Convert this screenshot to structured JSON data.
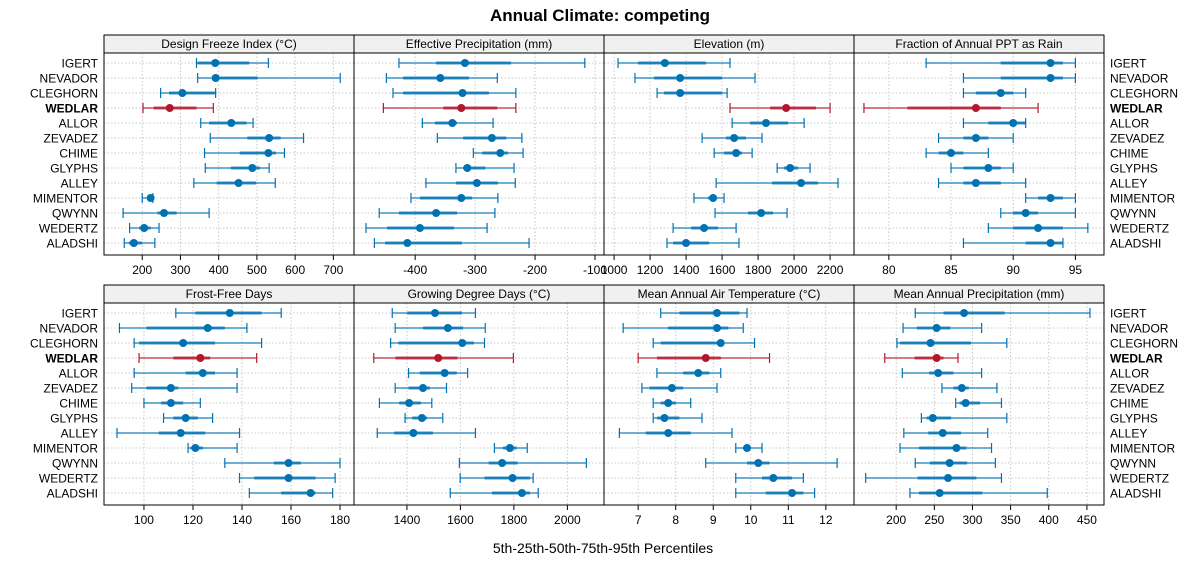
{
  "chart_data": {
    "type": "dotplot-percentile",
    "title": "Annual Climate: competing",
    "xlabel": "5th-25th-50th-75th-95th Percentiles",
    "ylabel": "",
    "highlight": "WEDLAR",
    "colors": {
      "normal": "#0072B2",
      "highlight": "#B2182B"
    },
    "rows": [
      "IGERT",
      "NEVADOR",
      "CLEGHORN",
      "WEDLAR",
      "ALLOR",
      "ZEVADEZ",
      "CHIME",
      "GLYPHS",
      "ALLEY",
      "MIMENTOR",
      "QWYNN",
      "WEDERTZ",
      "ALADSHI"
    ],
    "grid": true,
    "panels": [
      {
        "title": "Design Freeze Index (°C)",
        "xlim": [
          100,
          754
        ],
        "ticks": [
          200,
          300,
          400,
          500,
          600,
          700
        ],
        "values": [
          [
            342,
            345,
            391,
            480,
            530
          ],
          [
            345,
            390,
            392,
            502,
            718
          ],
          [
            248,
            270,
            305,
            392,
            392
          ],
          [
            202,
            230,
            272,
            342,
            386
          ],
          [
            353,
            375,
            433,
            473,
            490
          ],
          [
            378,
            475,
            532,
            562,
            622
          ],
          [
            363,
            455,
            530,
            550,
            572
          ],
          [
            365,
            432,
            488,
            508,
            532
          ],
          [
            335,
            395,
            452,
            498,
            548
          ],
          [
            200,
            215,
            222,
            225,
            228
          ],
          [
            150,
            240,
            257,
            290,
            375
          ],
          [
            167,
            192,
            205,
            222,
            244
          ],
          [
            153,
            165,
            178,
            200,
            233
          ]
        ]
      },
      {
        "title": "Effective Precipitation (mm)",
        "xlim": [
          -502,
          -85
        ],
        "ticks": [
          -400,
          -300,
          -200,
          -100
        ],
        "values": [
          [
            -427,
            -365,
            -317,
            -240,
            -117
          ],
          [
            -448,
            -420,
            -358,
            -310,
            -263
          ],
          [
            -437,
            -420,
            -321,
            -277,
            -232
          ],
          [
            -453,
            -353,
            -323,
            -263,
            -232
          ],
          [
            -388,
            -367,
            -338,
            -330,
            -270
          ],
          [
            -363,
            -320,
            -272,
            -248,
            -222
          ],
          [
            -303,
            -288,
            -258,
            -245,
            -220
          ],
          [
            -332,
            -320,
            -313,
            -283,
            -235
          ],
          [
            -382,
            -332,
            -297,
            -262,
            -233
          ],
          [
            -407,
            -392,
            -323,
            -305,
            -262
          ],
          [
            -460,
            -427,
            -365,
            -330,
            -267
          ],
          [
            -482,
            -447,
            -392,
            -335,
            -280
          ],
          [
            -468,
            -450,
            -413,
            -322,
            -210
          ]
        ]
      },
      {
        "title": "Elevation (m)",
        "xlim": [
          944,
          2333
        ],
        "ticks": [
          1000,
          1200,
          1400,
          1600,
          1800,
          2000,
          2200
        ],
        "values": [
          [
            1022,
            1133,
            1282,
            1511,
            1644
          ],
          [
            1116,
            1222,
            1367,
            1600,
            1783
          ],
          [
            1239,
            1278,
            1367,
            1600,
            1628
          ],
          [
            1644,
            1867,
            1956,
            2122,
            2200
          ],
          [
            1656,
            1756,
            1844,
            1967,
            2056
          ],
          [
            1489,
            1622,
            1667,
            1733,
            1822
          ],
          [
            1556,
            1611,
            1678,
            1711,
            1767
          ],
          [
            1906,
            1944,
            1978,
            2022,
            2089
          ],
          [
            1567,
            1878,
            2039,
            2133,
            2244
          ],
          [
            1444,
            1522,
            1550,
            1567,
            1611
          ],
          [
            1561,
            1744,
            1817,
            1883,
            1961
          ],
          [
            1328,
            1428,
            1500,
            1578,
            1678
          ],
          [
            1294,
            1328,
            1400,
            1528,
            1694
          ]
        ]
      },
      {
        "title": "Fraction of Annual PPT as Rain",
        "xlim": [
          77.2,
          97.3
        ],
        "ticks": [
          80,
          85,
          90,
          95
        ],
        "values": [
          [
            83,
            89,
            93,
            94,
            95
          ],
          [
            86,
            89,
            93,
            94,
            95
          ],
          [
            86,
            87,
            89,
            90,
            91
          ],
          [
            78,
            81.5,
            87,
            89,
            92
          ],
          [
            86,
            88,
            90,
            91,
            91
          ],
          [
            84,
            86,
            87,
            88,
            90
          ],
          [
            83,
            84,
            85,
            86,
            88
          ],
          [
            85,
            86,
            88,
            89,
            90
          ],
          [
            84,
            86,
            87,
            89,
            91
          ],
          [
            91,
            92,
            93,
            94,
            95
          ],
          [
            89,
            90,
            91,
            92,
            95
          ],
          [
            88,
            90,
            92,
            94,
            96
          ],
          [
            86,
            91,
            93,
            94,
            94
          ]
        ]
      },
      {
        "title": "Frost-Free Days",
        "xlim": [
          83.7,
          185.7
        ],
        "ticks": [
          100,
          120,
          140,
          160,
          180
        ],
        "values": [
          [
            113,
            121,
            135,
            148,
            156
          ],
          [
            90,
            101,
            126,
            133,
            142
          ],
          [
            96,
            98,
            116,
            129,
            148
          ],
          [
            98,
            112,
            123,
            127,
            146
          ],
          [
            96,
            117,
            124,
            129,
            138
          ],
          [
            95,
            101,
            111,
            114,
            138
          ],
          [
            100,
            107,
            111,
            116,
            123
          ],
          [
            108,
            112,
            117,
            122,
            128
          ],
          [
            89,
            106,
            115,
            125,
            139
          ],
          [
            118,
            119,
            121,
            124,
            138
          ],
          [
            133,
            153,
            159,
            164,
            180
          ],
          [
            139,
            145,
            159,
            170,
            178
          ],
          [
            143,
            156,
            168,
            170,
            177
          ]
        ]
      },
      {
        "title": "Growing Degree Days (°C)",
        "xlim": [
          1202,
          2137
        ],
        "ticks": [
          1400,
          1600,
          1800,
          2000
        ],
        "values": [
          [
            1345,
            1402,
            1505,
            1606,
            1656
          ],
          [
            1356,
            1460,
            1553,
            1610,
            1693
          ],
          [
            1339,
            1368,
            1607,
            1650,
            1690
          ],
          [
            1276,
            1357,
            1517,
            1589,
            1798
          ],
          [
            1406,
            1448,
            1541,
            1586,
            1627
          ],
          [
            1356,
            1406,
            1460,
            1486,
            1548
          ],
          [
            1297,
            1371,
            1408,
            1452,
            1493
          ],
          [
            1393,
            1420,
            1456,
            1475,
            1534
          ],
          [
            1289,
            1352,
            1424,
            1497,
            1656
          ],
          [
            1727,
            1759,
            1785,
            1810,
            1850
          ],
          [
            1596,
            1706,
            1756,
            1814,
            2071
          ],
          [
            1599,
            1690,
            1795,
            1860,
            1872
          ],
          [
            1562,
            1718,
            1830,
            1860,
            1891
          ]
        ]
      },
      {
        "title": "Mean Annual Air Temperature (°C)",
        "xlim": [
          6.09,
          12.75
        ],
        "ticks": [
          7,
          8,
          9,
          10,
          11,
          12
        ],
        "values": [
          [
            7.6,
            8.1,
            9.1,
            9.7,
            9.9
          ],
          [
            6.6,
            7.8,
            9.1,
            9.4,
            9.8
          ],
          [
            7.4,
            7.6,
            9.2,
            9.3,
            10.1
          ],
          [
            7.0,
            7.5,
            8.8,
            9.2,
            10.5
          ],
          [
            7.5,
            8.2,
            8.6,
            8.9,
            9.2
          ],
          [
            7.1,
            7.3,
            7.9,
            8.2,
            9.1
          ],
          [
            7.4,
            7.6,
            7.8,
            8.0,
            8.4
          ],
          [
            7.4,
            7.5,
            7.7,
            8.1,
            8.7
          ],
          [
            6.5,
            7.2,
            7.8,
            8.4,
            9.5
          ],
          [
            9.6,
            9.8,
            9.9,
            10.0,
            10.3
          ],
          [
            8.8,
            9.9,
            10.2,
            10.5,
            12.3
          ],
          [
            9.6,
            10.3,
            10.6,
            11.1,
            11.4
          ],
          [
            9.6,
            10.4,
            11.1,
            11.4,
            11.7
          ]
        ]
      },
      {
        "title": "Mean Annual Precipitation (mm)",
        "xlim": [
          144.7,
          472.4
        ],
        "ticks": [
          200,
          250,
          300,
          350,
          400,
          450
        ],
        "values": [
          [
            225,
            262,
            289,
            342,
            454
          ],
          [
            209,
            227,
            253,
            271,
            312
          ],
          [
            201,
            205,
            245,
            298,
            345
          ],
          [
            185,
            224,
            253,
            262,
            281
          ],
          [
            208,
            243,
            255,
            275,
            312
          ],
          [
            260,
            275,
            286,
            295,
            332
          ],
          [
            278,
            283,
            291,
            310,
            338
          ],
          [
            233,
            240,
            248,
            272,
            345
          ],
          [
            210,
            242,
            261,
            285,
            320
          ],
          [
            205,
            230,
            279,
            292,
            325
          ],
          [
            225,
            244,
            270,
            293,
            330
          ],
          [
            160,
            228,
            268,
            305,
            338
          ],
          [
            218,
            230,
            257,
            313,
            398
          ]
        ]
      }
    ]
  }
}
